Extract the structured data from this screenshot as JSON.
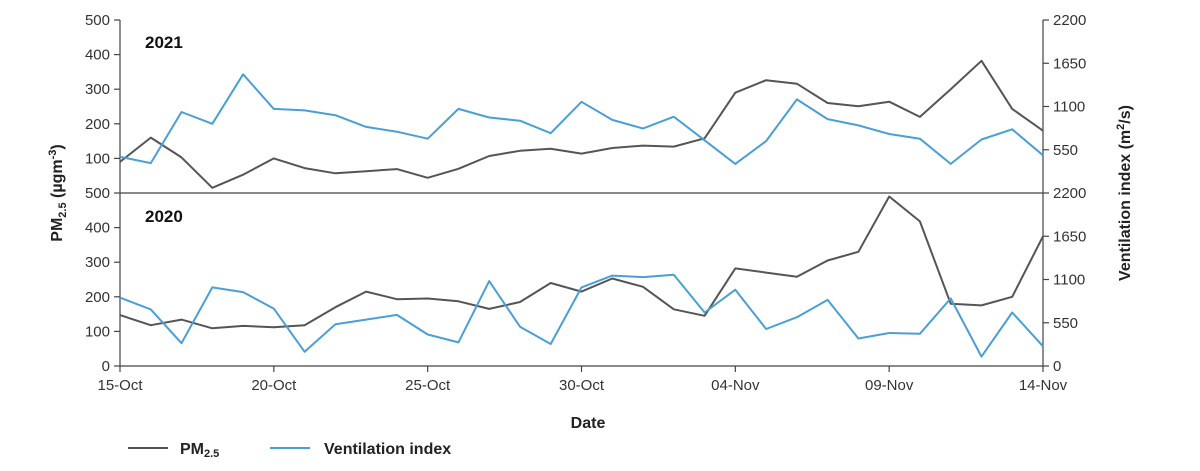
{
  "chart_data": {
    "type": "line",
    "x_axis": {
      "label": "Date",
      "ticks": [
        {
          "label": "15-Oct",
          "day": 0
        },
        {
          "label": "20-Oct",
          "day": 5
        },
        {
          "label": "25-Oct",
          "day": 10
        },
        {
          "label": "30-Oct",
          "day": 15
        },
        {
          "label": "04-Nov",
          "day": 20
        },
        {
          "label": "09-Nov",
          "day": 25
        },
        {
          "label": "14-Nov",
          "day": 30
        }
      ]
    },
    "y_left": {
      "label_main": "PM",
      "label_sub": "2.5",
      "label_unit": " (µgm",
      "label_sup": "-3",
      "label_close": ")",
      "range": [
        0,
        500
      ],
      "ticks": [
        "0",
        "100",
        "200",
        "300",
        "400",
        "500"
      ]
    },
    "y_right": {
      "label_main": "Ventilation index (m",
      "label_sup": "2",
      "label_close": "/s)",
      "range": [
        0,
        2200
      ],
      "ticks": [
        "0",
        "550",
        "1100",
        "1650",
        "2200"
      ]
    },
    "legend": {
      "position": "bottom-left",
      "items": [
        {
          "label_main": "PM",
          "label_sub": "2.5",
          "color": "#555555"
        },
        {
          "label_main": "Ventilation index",
          "label_sub": "",
          "color": "#4a9fd4"
        }
      ]
    },
    "panels": [
      {
        "title": "2021",
        "series": [
          {
            "name": "PM2.5",
            "axis": "left",
            "color": "#555555",
            "values": [
              90,
              160,
              103,
              15,
              53,
              100,
              72,
              57,
              63,
              69,
              44,
              70,
              107,
              122,
              128,
              114,
              130,
              137,
              134,
              158,
              290,
              326,
              316,
              260,
              251,
              264,
              220,
              300,
              382,
              243,
              180
            ]
          },
          {
            "name": "Ventilation index",
            "axis": "right",
            "color": "#4a9fd4",
            "values": [
              460,
              380,
              1030,
              880,
              1510,
              1070,
              1050,
              990,
              840,
              780,
              690,
              1070,
              960,
              920,
              760,
              1160,
              930,
              820,
              970,
              670,
              370,
              660,
              1190,
              940,
              860,
              750,
              690,
              370,
              680,
              810,
              480
            ]
          }
        ]
      },
      {
        "title": "2020",
        "series": [
          {
            "name": "PM2.5",
            "axis": "left",
            "color": "#555555",
            "values": [
              147,
              118,
              134,
              109,
              116,
              112,
              118,
              170,
              215,
              193,
              195,
              187,
              165,
              185,
              240,
              215,
              253,
              229,
              164,
              145,
              282,
              270,
              258,
              305,
              330,
              490,
              418,
              180,
              175,
              200,
              375
            ]
          },
          {
            "name": "Ventilation index",
            "axis": "right",
            "color": "#4a9fd4",
            "values": [
              870,
              720,
              290,
              1000,
              940,
              730,
              180,
              530,
              590,
              650,
              400,
              300,
              1080,
              500,
              280,
              1000,
              1150,
              1130,
              1160,
              680,
              970,
              470,
              620,
              840,
              350,
              420,
              410,
              860,
              120,
              680,
              250
            ]
          }
        ]
      }
    ]
  }
}
